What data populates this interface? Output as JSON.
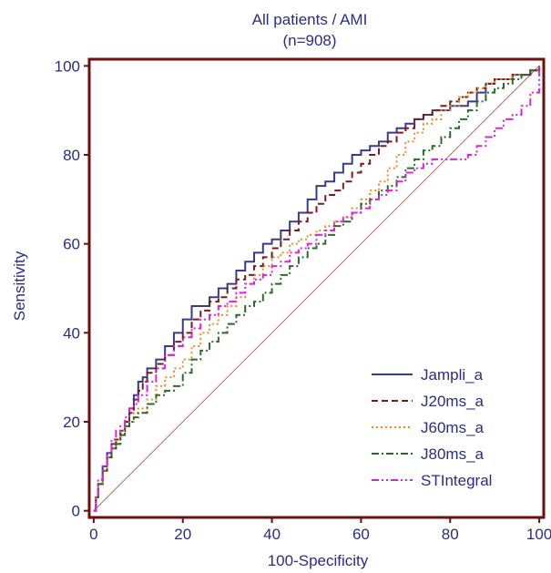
{
  "chart_data": {
    "type": "line",
    "title": "All patients / AMI",
    "subtitle": "(n=908)",
    "xlabel": "100-Specificity",
    "ylabel": "Sensitivity",
    "xlim": [
      -1,
      101
    ],
    "ylim": [
      -1.5,
      101.5
    ],
    "xticks": [
      0,
      20,
      40,
      60,
      80,
      100
    ],
    "yticks": [
      0,
      20,
      40,
      60,
      80,
      100
    ],
    "grid": false,
    "legend_position": "bottom-right",
    "frame_color": "#6b0f0f",
    "text_color": "#2b2b8c",
    "diagonal": {
      "x": [
        0,
        100
      ],
      "y": [
        0,
        100
      ],
      "color": "#c04040"
    },
    "series": [
      {
        "name": "Jampli_a",
        "color": "#3a3a8c",
        "dash": "solid",
        "x": [
          0,
          0.5,
          1,
          2,
          3,
          4,
          5,
          6,
          7,
          8,
          9,
          10,
          11,
          12,
          14,
          16,
          18,
          20,
          22,
          24,
          26,
          28,
          30,
          32,
          34,
          36,
          38,
          40,
          42,
          44,
          46,
          48,
          50,
          52,
          54,
          56,
          58,
          60,
          62,
          64,
          66,
          68,
          70,
          72,
          74,
          76,
          78,
          80,
          82,
          84,
          86,
          88,
          90,
          92,
          94,
          96,
          98,
          100
        ],
        "y": [
          0,
          3,
          6,
          10,
          13,
          15,
          16,
          18,
          20,
          23,
          26,
          29,
          30,
          32,
          34,
          37,
          40,
          43,
          46,
          46,
          48,
          50,
          51,
          54,
          56,
          58,
          60,
          61,
          63,
          65,
          67,
          70,
          73,
          74,
          76,
          78,
          80,
          81,
          82,
          83,
          85,
          86,
          87,
          88,
          89,
          90,
          90,
          91,
          91,
          92,
          94,
          96,
          97,
          97,
          98,
          98,
          99,
          100
        ]
      },
      {
        "name": "J20ms_a",
        "color": "#7a1a1a",
        "dash": "7,4",
        "x": [
          0,
          0.5,
          1,
          2,
          3,
          4,
          5,
          6,
          7,
          8,
          9,
          10,
          11,
          12,
          14,
          16,
          18,
          20,
          22,
          24,
          26,
          28,
          30,
          32,
          34,
          36,
          38,
          40,
          42,
          44,
          46,
          48,
          50,
          52,
          54,
          56,
          58,
          60,
          62,
          64,
          66,
          68,
          70,
          72,
          74,
          76,
          78,
          80,
          82,
          84,
          86,
          88,
          90,
          92,
          94,
          96,
          98,
          100
        ],
        "y": [
          0,
          3,
          6,
          9,
          12,
          14,
          16,
          18,
          20,
          22,
          25,
          27,
          29,
          31,
          33,
          35,
          38,
          40,
          43,
          45,
          47,
          48,
          50,
          52,
          53,
          55,
          57,
          59,
          61,
          63,
          65,
          67,
          69,
          71,
          72,
          74,
          76,
          78,
          80,
          82,
          83,
          85,
          86,
          88,
          89,
          90,
          91,
          92,
          93,
          94,
          95,
          96,
          97,
          97,
          98,
          98,
          99,
          100
        ]
      },
      {
        "name": "J60ms_a",
        "color": "#f08a20",
        "dash": "2,3",
        "x": [
          0,
          0.5,
          1,
          2,
          3,
          4,
          5,
          6,
          7,
          8,
          9,
          10,
          12,
          14,
          16,
          18,
          20,
          22,
          24,
          26,
          28,
          30,
          32,
          34,
          36,
          38,
          40,
          42,
          44,
          46,
          48,
          50,
          52,
          54,
          56,
          58,
          60,
          62,
          64,
          66,
          68,
          70,
          72,
          74,
          76,
          78,
          80,
          82,
          84,
          86,
          88,
          90,
          92,
          94,
          96,
          98,
          100
        ],
        "y": [
          0,
          3,
          6,
          9,
          12,
          14,
          16,
          18,
          19,
          20,
          22,
          23,
          25,
          28,
          30,
          32,
          34,
          37,
          40,
          42,
          44,
          46,
          48,
          51,
          53,
          55,
          57,
          58,
          60,
          61,
          62,
          63,
          64,
          65,
          66,
          68,
          70,
          72,
          74,
          77,
          80,
          83,
          85,
          87,
          88,
          90,
          91,
          93,
          94,
          95,
          96,
          97,
          97,
          98,
          98,
          99,
          100
        ]
      },
      {
        "name": "J80ms_a",
        "color": "#2a6a2a",
        "dash": "8,3,2,3",
        "x": [
          0,
          0.5,
          1,
          2,
          3,
          4,
          5,
          6,
          7,
          8,
          9,
          10,
          12,
          14,
          16,
          18,
          20,
          22,
          24,
          26,
          28,
          30,
          32,
          34,
          36,
          38,
          40,
          42,
          44,
          46,
          48,
          50,
          52,
          54,
          56,
          58,
          60,
          62,
          64,
          66,
          68,
          70,
          72,
          74,
          76,
          78,
          80,
          82,
          84,
          86,
          88,
          90,
          92,
          94,
          96,
          98,
          100
        ],
        "y": [
          0,
          3,
          6,
          9,
          12,
          14,
          15,
          17,
          19,
          20,
          21,
          22,
          24,
          26,
          27,
          28,
          31,
          34,
          36,
          38,
          40,
          42,
          44,
          46,
          47,
          49,
          51,
          53,
          55,
          57,
          59,
          60,
          62,
          64,
          65,
          67,
          69,
          70,
          72,
          73,
          75,
          77,
          79,
          81,
          82,
          84,
          86,
          88,
          90,
          92,
          94,
          95,
          96,
          97,
          98,
          99,
          100
        ]
      },
      {
        "name": "STIntegral",
        "color": "#e020e0",
        "dash": "8,3,2,3,2,3",
        "x": [
          0,
          0.5,
          1,
          2,
          3,
          4,
          5,
          6,
          7,
          8,
          9,
          10,
          12,
          14,
          16,
          18,
          20,
          22,
          24,
          26,
          28,
          30,
          32,
          34,
          36,
          38,
          40,
          42,
          44,
          46,
          48,
          50,
          52,
          54,
          56,
          58,
          60,
          62,
          64,
          66,
          68,
          70,
          72,
          74,
          76,
          78,
          80,
          82,
          84,
          86,
          88,
          90,
          92,
          94,
          96,
          98,
          100
        ],
        "y": [
          0,
          3,
          7,
          10,
          13,
          16,
          18,
          19,
          21,
          23,
          24,
          26,
          29,
          32,
          35,
          37,
          39,
          41,
          43,
          44,
          46,
          47,
          49,
          51,
          52,
          53,
          55,
          56,
          58,
          59,
          60,
          62,
          63,
          65,
          66,
          67,
          68,
          70,
          71,
          72,
          74,
          76,
          77,
          78,
          79,
          79,
          79,
          79,
          80,
          82,
          84,
          86,
          88,
          89,
          91,
          94,
          100
        ]
      }
    ]
  }
}
